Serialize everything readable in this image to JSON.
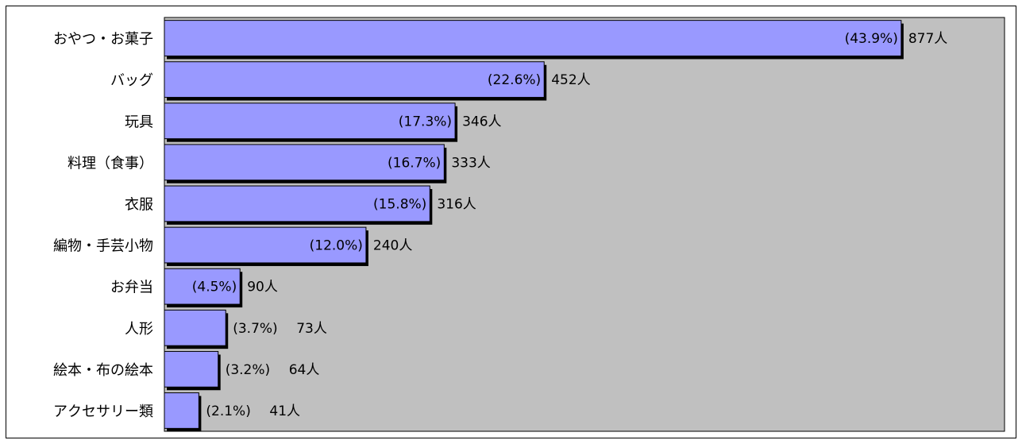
{
  "chart_data": {
    "type": "bar",
    "orientation": "horizontal",
    "categories": [
      "おやつ・お菓子",
      "バッグ",
      "玩具",
      "料理（食事）",
      "衣服",
      "編物・手芸小物",
      "お弁当",
      "人形",
      "絵本・布の絵本",
      "アクセサリー類"
    ],
    "values": [
      877,
      452,
      346,
      333,
      316,
      240,
      90,
      73,
      64,
      41
    ],
    "percent_labels": [
      "(43.9%)",
      "(22.6%)",
      "(17.3%)",
      "(16.7%)",
      "(15.8%)",
      "(12.0%)",
      "(4.5%)",
      "(3.7%)",
      "(3.2%)",
      "(2.1%)"
    ],
    "value_labels": [
      "877人",
      "452人",
      "346人",
      "333人",
      "316人",
      "240人",
      "90人",
      "73人",
      "64人",
      "41人"
    ],
    "xlim": [
      0,
      1000
    ],
    "grid": false,
    "colors": {
      "bar_fill": "#9999ff",
      "bar_shadow": "#000000",
      "plot_background": "#c0c0c0"
    }
  }
}
